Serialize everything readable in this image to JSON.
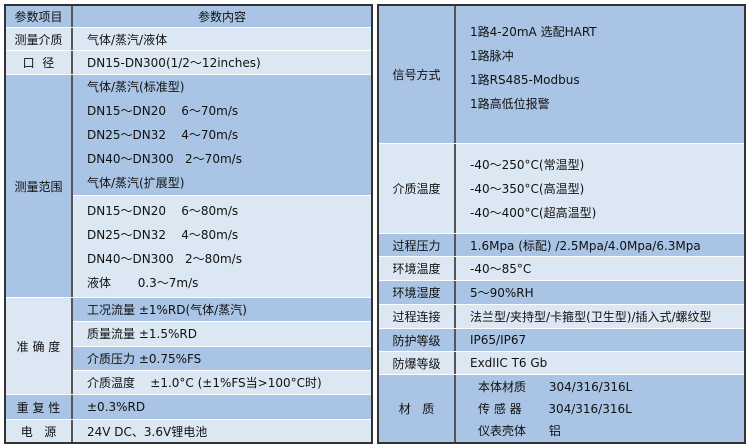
{
  "left": {
    "header": {
      "label": "参数项目",
      "content": "参数内容"
    },
    "medium": {
      "label": "测量介质",
      "value": "气体/蒸汽/液体"
    },
    "bore": {
      "label": "口  径",
      "value": "DN15-DN300(1/2～12inches)"
    },
    "range": {
      "label": "测量范围",
      "standard": [
        "气体/蒸汽(标准型)",
        "DN15～DN20    6～70m/s",
        "DN25～DN32    4～70m/s",
        "DN40～DN300   2～70m/s",
        "气体/蒸汽(扩展型)"
      ],
      "extended": [
        "DN15～DN20    6～80m/s",
        "DN25～DN32    4～80m/s",
        "DN40～DN300   2～80m/s",
        "液体       0.3～7m/s"
      ]
    },
    "accuracy": {
      "label": "准 确 度",
      "items": [
        "工况流量    ±1%RD(气体/蒸汽)",
        "质量流量    ±1.5%RD",
        "介质压力    ±0.75%FS",
        "介质温度    ±1.0°C (±1%FS当>100°C时)"
      ]
    },
    "repeat": {
      "label": "重 复 性",
      "value": "±0.3%RD"
    },
    "power": {
      "label": "电   源",
      "value": "24V DC、3.6V锂电池"
    }
  },
  "right": {
    "signal": {
      "label": "信号方式",
      "lines": [
        "1路4-20mA 选配HART",
        "1路脉冲",
        "1路RS485-Modbus",
        "1路高低位报警"
      ]
    },
    "medium_temp": {
      "label": "介质温度",
      "lines": [
        "-40～250°C(常温型)",
        "-40～350°C(高温型)",
        "-40～400°C(超高温型)"
      ]
    },
    "pressure": {
      "label": "过程压力",
      "value": "1.6Mpa (标配) /2.5Mpa/4.0Mpa/6.3Mpa"
    },
    "amb_temp": {
      "label": "环境温度",
      "value": "-40～85°C"
    },
    "humidity": {
      "label": "环境湿度",
      "value": "5～90%RH"
    },
    "connection": {
      "label": "过程连接",
      "value": "法兰型/夹持型/卡箍型(卫生型)/插入式/螺纹型"
    },
    "protection": {
      "label": "防护等级",
      "value": "IP65/IP67"
    },
    "explosion": {
      "label": "防爆等级",
      "value": "ExdIIC T6 Gb"
    },
    "material": {
      "label": "材   质",
      "lines": [
        "本体材质      304/316/316L",
        "传 感 器       304/316/316L",
        "仪表壳体      铝"
      ]
    }
  },
  "colors": {
    "dark_row": "#a9c4e4",
    "light_row": "#dce7f4",
    "border": "#333333"
  }
}
